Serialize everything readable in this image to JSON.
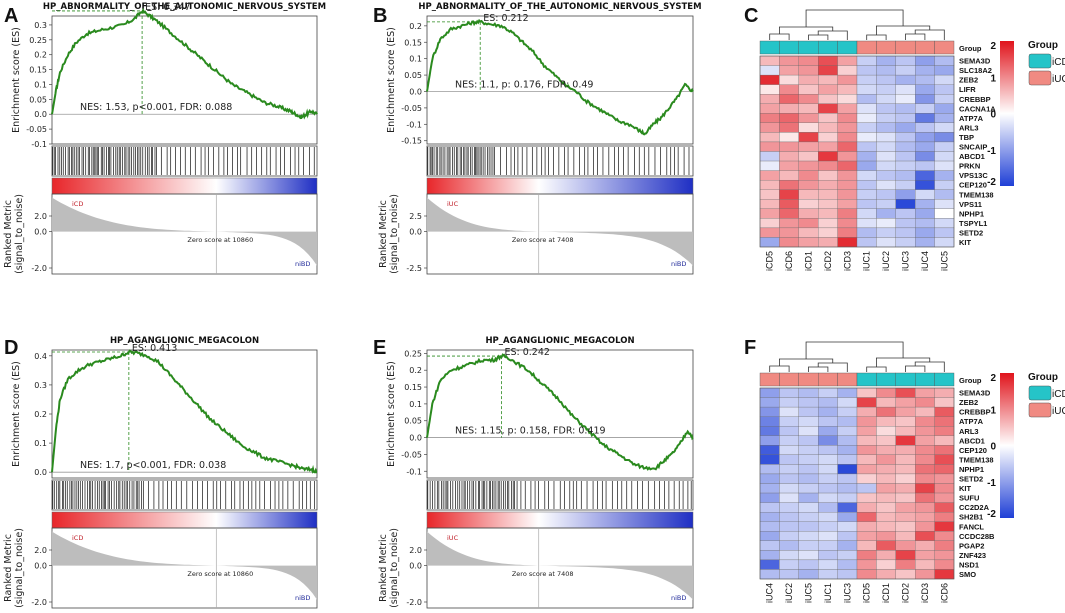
{
  "panel_labels": [
    "A",
    "B",
    "C",
    "D",
    "E",
    "F"
  ],
  "colors": {
    "curve": "#2a8a1e",
    "iCD": "#25c4c8",
    "iUC": "#f08a82",
    "heat_low": "#1f3fd6",
    "heat_mid": "#ffffff",
    "heat_high": "#e0141c",
    "ramp_red": "#e8262a",
    "ramp_blue": "#1f2fc4",
    "metric_fill": "#bdbdbd",
    "pos_label": "#c0202a",
    "neg_label": "#202a9a"
  },
  "gsea": [
    {
      "label": "A",
      "title": "HP_ABNORMALITY_OF_THE_AUTONOMIC_NERVOUS_SYSTEM",
      "es_text": "ES: 0.347",
      "stats_text": "NES: 1.53, p<0.001, FDR: 0.088",
      "y_label": "Enrichment score (ES)",
      "metric_label": "Ranked Metric\n(signal_to_noise)",
      "pos_group": "iCD",
      "neg_group": "niBD",
      "zero_text": "Zero score at 10860",
      "es_ticks": [
        "0.3",
        "0.25",
        "0.2",
        "0.15",
        "0.1",
        "0.05",
        "0.0",
        "-0.05",
        "-0.1"
      ],
      "metric_ticks": [
        "2.0",
        "0.0",
        "-2.0"
      ],
      "chart_data": {
        "type": "line",
        "title": "HP_ABNORMALITY_OF_THE_AUTONOMIC_NERVOUS_SYSTEM",
        "ylabel": "Enrichment score (ES)",
        "ylim": [
          -0.1,
          0.33
        ],
        "x": [
          0,
          0.015,
          0.03,
          0.06,
          0.09,
          0.13,
          0.17,
          0.22,
          0.27,
          0.31,
          0.34,
          0.37,
          0.4,
          0.44,
          0.48,
          0.52,
          0.56,
          0.6,
          0.64,
          0.68,
          0.72,
          0.76,
          0.8,
          0.84,
          0.87,
          0.9,
          0.92,
          0.94,
          0.96,
          0.98,
          1.0
        ],
        "y": [
          0,
          0.08,
          0.14,
          0.2,
          0.24,
          0.27,
          0.28,
          0.29,
          0.3,
          0.32,
          0.347,
          0.33,
          0.31,
          0.28,
          0.25,
          0.22,
          0.19,
          0.16,
          0.13,
          0.1,
          0.08,
          0.06,
          0.04,
          0.03,
          0.02,
          0.01,
          0.0,
          -0.01,
          0.0,
          0.01,
          0.0
        ],
        "peak_x": 0.34,
        "peak_es": 0.347,
        "zero_score_position": 0.62
      }
    },
    {
      "label": "B",
      "title": "HP_ABNORMALITY_OF_THE_AUTONOMIC_NERVOUS_SYSTEM",
      "es_text": "ES: 0.212",
      "stats_text": "NES: 1.1, p: 0.176, FDR: 0.49",
      "y_label": "Enrichment score (ES)",
      "metric_label": "Ranked Metric\n(signal_to_noise)",
      "pos_group": "iUC",
      "neg_group": "niBD",
      "zero_text": "Zero score at 7408",
      "es_ticks": [
        "0.2",
        "0.15",
        "0.1",
        "0.05",
        "0.0",
        "-0.05",
        "-0.1",
        "-0.15"
      ],
      "metric_ticks": [
        "2.5",
        "0.0",
        "-2.5"
      ],
      "chart_data": {
        "type": "line",
        "title": "HP_ABNORMALITY_OF_THE_AUTONOMIC_NERVOUS_SYSTEM",
        "ylabel": "Enrichment score (ES)",
        "ylim": [
          -0.16,
          0.23
        ],
        "x": [
          0,
          0.02,
          0.05,
          0.09,
          0.13,
          0.17,
          0.2,
          0.24,
          0.28,
          0.32,
          0.36,
          0.4,
          0.44,
          0.48,
          0.52,
          0.56,
          0.6,
          0.64,
          0.68,
          0.72,
          0.76,
          0.8,
          0.82,
          0.85,
          0.88,
          0.91,
          0.94,
          0.97,
          1.0
        ],
        "y": [
          0,
          0.1,
          0.16,
          0.19,
          0.2,
          0.21,
          0.212,
          0.205,
          0.2,
          0.18,
          0.15,
          0.12,
          0.08,
          0.05,
          0.02,
          0.0,
          -0.03,
          -0.05,
          -0.07,
          -0.09,
          -0.1,
          -0.12,
          -0.13,
          -0.1,
          -0.08,
          -0.05,
          -0.02,
          0.02,
          0.0
        ],
        "peak_x": 0.2,
        "peak_es": 0.212,
        "zero_score_position": 0.42
      }
    },
    {
      "label": "D",
      "title": "HP_AGANGLIONIC_MEGACOLON",
      "es_text": "ES: 0.413",
      "stats_text": "NES: 1.7, p<0.001, FDR: 0.038",
      "y_label": "Enrichment score (ES)",
      "metric_label": "Ranked Metric\n(signal_to_noise)",
      "pos_group": "iCD",
      "neg_group": "niBD",
      "zero_text": "Zero score at 10860",
      "es_ticks": [
        "0.4",
        "0.3",
        "0.2",
        "0.1",
        "0.0"
      ],
      "metric_ticks": [
        "2.0",
        "0.0",
        "-2.0"
      ],
      "chart_data": {
        "type": "line",
        "title": "HP_AGANGLIONIC_MEGACOLON",
        "ylabel": "Enrichment score (ES)",
        "ylim": [
          -0.02,
          0.42
        ],
        "x": [
          0,
          0.015,
          0.03,
          0.06,
          0.1,
          0.14,
          0.18,
          0.22,
          0.26,
          0.29,
          0.32,
          0.36,
          0.4,
          0.44,
          0.48,
          0.52,
          0.56,
          0.6,
          0.64,
          0.68,
          0.72,
          0.76,
          0.8,
          0.84,
          0.88,
          0.92,
          0.95,
          0.98,
          1.0
        ],
        "y": [
          0,
          0.15,
          0.25,
          0.32,
          0.35,
          0.37,
          0.38,
          0.39,
          0.4,
          0.413,
          0.41,
          0.4,
          0.38,
          0.34,
          0.3,
          0.26,
          0.22,
          0.18,
          0.15,
          0.12,
          0.09,
          0.07,
          0.05,
          0.04,
          0.03,
          0.02,
          0.01,
          0.01,
          0.0
        ],
        "peak_x": 0.29,
        "peak_es": 0.413,
        "zero_score_position": 0.62
      }
    },
    {
      "label": "E",
      "title": "HP_AGANGLIONIC_MEGACOLON",
      "es_text": "ES: 0.242",
      "stats_text": "NES: 1.15, p: 0.158, FDR: 0.419",
      "y_label": "Enrichment score (ES)",
      "metric_label": "Ranked Metric\n(signal_to_noise)",
      "pos_group": "iUC",
      "neg_group": "niBD",
      "zero_text": "Zero score at 7408",
      "es_ticks": [
        "0.25",
        "0.2",
        "0.15",
        "0.1",
        "0.05",
        "0.0",
        "-0.05",
        "-0.1"
      ],
      "metric_ticks": [
        "2.0",
        "0.0",
        "-2.0"
      ],
      "chart_data": {
        "type": "line",
        "title": "HP_AGANGLIONIC_MEGACOLON",
        "ylabel": "Enrichment score (ES)",
        "ylim": [
          -0.12,
          0.26
        ],
        "x": [
          0,
          0.02,
          0.05,
          0.09,
          0.13,
          0.17,
          0.21,
          0.25,
          0.28,
          0.3,
          0.34,
          0.38,
          0.42,
          0.46,
          0.5,
          0.54,
          0.58,
          0.62,
          0.66,
          0.7,
          0.74,
          0.78,
          0.82,
          0.86,
          0.89,
          0.92,
          0.95,
          0.98,
          1.0
        ],
        "y": [
          0,
          0.1,
          0.17,
          0.2,
          0.21,
          0.22,
          0.23,
          0.23,
          0.242,
          0.24,
          0.22,
          0.2,
          0.17,
          0.14,
          0.11,
          0.07,
          0.04,
          0.01,
          -0.02,
          -0.04,
          -0.06,
          -0.08,
          -0.09,
          -0.09,
          -0.07,
          -0.05,
          -0.02,
          0.02,
          0.0
        ],
        "peak_x": 0.28,
        "peak_es": 0.242,
        "zero_score_position": 0.42
      }
    }
  ],
  "heatmaps": [
    {
      "label": "C",
      "samples": [
        "iCD5",
        "iCD6",
        "iCD1",
        "iCD2",
        "iCD3",
        "iUC1",
        "iUC2",
        "iUC3",
        "iUC4",
        "iUC5"
      ],
      "sample_groups": [
        "iCD",
        "iCD",
        "iCD",
        "iCD",
        "iCD",
        "iUC",
        "iUC",
        "iUC",
        "iUC",
        "iUC"
      ],
      "genes": [
        "SEMA3D",
        "SLC18A2",
        "ZEB2",
        "LIFR",
        "CREBBP",
        "CACNA1A",
        "ATP7A",
        "ARL3",
        "TBP",
        "SNCAIP",
        "ABCD1",
        "PRKN",
        "VPS13C",
        "CEP120",
        "TMEM138",
        "VPS11",
        "NPHP1",
        "TSPYL1",
        "SETD2",
        "KIT"
      ],
      "group_label": "Group",
      "legend_title": "Group",
      "legend_items": [
        "iCD",
        "iUC"
      ],
      "colorbar_ticks": [
        "2",
        "1",
        "0",
        "-1",
        "-2"
      ],
      "chart_data": {
        "type": "heatmap",
        "zlim": [
          -2,
          2
        ],
        "values": [
          [
            0.6,
            0.9,
            1.0,
            1.5,
            0.8,
            -0.5,
            -0.8,
            -0.6,
            -1.0,
            -0.7
          ],
          [
            -0.3,
            0.8,
            0.9,
            1.6,
            0.4,
            -0.6,
            -0.7,
            -0.5,
            -0.8,
            -0.9
          ],
          [
            1.8,
            0.3,
            0.7,
            0.6,
            0.9,
            -0.5,
            -0.6,
            -0.8,
            -0.7,
            -0.4
          ],
          [
            0.2,
            1.0,
            0.5,
            0.8,
            0.6,
            -0.4,
            -0.5,
            -0.3,
            -0.9,
            -0.6
          ],
          [
            0.7,
            1.3,
            1.0,
            0.5,
            0.3,
            -0.7,
            -0.4,
            -0.2,
            -1.1,
            -0.5
          ],
          [
            0.8,
            0.7,
            0.6,
            1.6,
            0.8,
            -0.3,
            -0.6,
            -0.7,
            -0.5,
            -0.9
          ],
          [
            1.1,
            1.3,
            0.9,
            0.5,
            1.0,
            -0.2,
            -0.5,
            -0.6,
            -1.4,
            -0.8
          ],
          [
            0.9,
            1.2,
            0.3,
            0.6,
            0.9,
            -0.5,
            -0.7,
            -0.9,
            -0.6,
            -0.4
          ],
          [
            0.6,
            0.2,
            1.6,
            0.4,
            1.0,
            -0.2,
            -0.3,
            -0.6,
            -1.0,
            -1.2
          ],
          [
            0.9,
            0.9,
            0.8,
            0.8,
            1.3,
            -0.6,
            -0.4,
            -0.7,
            -0.9,
            -0.5
          ],
          [
            -0.5,
            0.7,
            0.5,
            1.7,
            0.9,
            -0.8,
            -0.3,
            -0.6,
            -1.2,
            -0.4
          ],
          [
            -0.2,
            0.8,
            0.9,
            1.0,
            1.3,
            -0.9,
            -0.4,
            -0.5,
            -0.6,
            -0.3
          ],
          [
            0.8,
            0.6,
            1.0,
            0.5,
            0.9,
            -0.4,
            -0.6,
            -0.7,
            -1.6,
            -0.8
          ],
          [
            0.6,
            1.2,
            0.9,
            0.7,
            0.9,
            -0.6,
            -0.3,
            -0.5,
            -1.8,
            -0.5
          ],
          [
            0.5,
            1.6,
            0.6,
            0.6,
            0.9,
            -0.5,
            -0.6,
            -1.0,
            -0.4,
            -0.7
          ],
          [
            0.6,
            1.4,
            0.4,
            0.5,
            0.8,
            -0.6,
            -0.5,
            -1.9,
            -0.8,
            -0.3
          ],
          [
            0.8,
            1.3,
            0.7,
            0.6,
            1.1,
            -0.4,
            -0.8,
            -0.6,
            -0.9,
            0.0
          ],
          [
            0.4,
            0.9,
            1.0,
            0.4,
            1.0,
            -0.3,
            -0.2,
            -0.6,
            -0.7,
            -0.4
          ],
          [
            0.9,
            0.9,
            0.6,
            0.4,
            1.1,
            -0.7,
            -0.5,
            -0.6,
            -0.9,
            -0.6
          ],
          [
            -0.9,
            1.0,
            0.8,
            0.7,
            1.8,
            -0.6,
            -0.3,
            -0.5,
            -0.8,
            -0.4
          ]
        ]
      }
    },
    {
      "label": "F",
      "samples": [
        "iUC4",
        "iUC2",
        "iUC5",
        "iUC1",
        "iUC3",
        "iCD5",
        "iCD1",
        "iCD2",
        "iCD3",
        "iCD6"
      ],
      "sample_groups": [
        "iUC",
        "iUC",
        "iUC",
        "iUC",
        "iUC",
        "iCD",
        "iCD",
        "iCD",
        "iCD",
        "iCD"
      ],
      "genes": [
        "SEMA3D",
        "ZEB2",
        "CREBBP",
        "ATP7A",
        "ARL3",
        "ABCD1",
        "CEP120",
        "TMEM138",
        "NPHP1",
        "SETD2",
        "KIT",
        "SUFU",
        "CC2D2A",
        "SH2B1",
        "FANCL",
        "CCDC28B",
        "PGAP2",
        "ZNF423",
        "NSD1",
        "SMO"
      ],
      "group_label": "Group",
      "legend_title": "Group",
      "legend_items": [
        "iCD",
        "iUC"
      ],
      "colorbar_ticks": [
        "2",
        "1",
        "0",
        "-1",
        "-2"
      ],
      "chart_data": {
        "type": "heatmap",
        "zlim": [
          -2,
          2
        ],
        "values": [
          [
            -1.0,
            -0.6,
            -0.7,
            -0.5,
            -0.8,
            0.5,
            1.0,
            1.5,
            0.8,
            0.7
          ],
          [
            -0.9,
            -0.5,
            -0.6,
            -0.7,
            -0.4,
            1.6,
            0.6,
            0.8,
            1.0,
            0.5
          ],
          [
            -1.1,
            -0.3,
            -0.6,
            -0.8,
            -0.5,
            0.7,
            1.2,
            0.8,
            0.6,
            1.4
          ],
          [
            -1.3,
            -0.5,
            -0.4,
            -0.6,
            -0.7,
            0.9,
            0.6,
            0.5,
            1.0,
            1.2
          ],
          [
            -1.4,
            -0.6,
            -0.3,
            -0.9,
            -0.5,
            0.8,
            0.3,
            0.6,
            0.9,
            1.1
          ],
          [
            -1.0,
            -0.5,
            -0.6,
            -1.2,
            -0.7,
            0.6,
            0.5,
            1.7,
            0.8,
            0.6
          ],
          [
            -1.7,
            -0.4,
            -0.5,
            -0.6,
            -0.8,
            0.9,
            0.7,
            0.7,
            1.0,
            1.2
          ],
          [
            -1.8,
            -0.6,
            -0.5,
            -0.4,
            -0.6,
            0.6,
            0.9,
            0.6,
            1.0,
            1.5
          ],
          [
            -0.7,
            -0.5,
            -0.6,
            -0.4,
            -1.9,
            0.8,
            0.7,
            0.6,
            1.2,
            1.3
          ],
          [
            -0.9,
            -0.6,
            -0.7,
            -0.5,
            -0.6,
            0.4,
            0.6,
            0.4,
            1.0,
            0.9
          ],
          [
            -0.8,
            -0.4,
            -0.5,
            -0.6,
            -0.7,
            -0.6,
            0.8,
            0.7,
            1.6,
            1.0
          ],
          [
            -1.0,
            -0.3,
            -0.8,
            -0.4,
            -0.5,
            0.5,
            0.6,
            0.5,
            1.2,
            0.9
          ],
          [
            -0.6,
            -0.5,
            -0.4,
            -0.7,
            -1.6,
            0.7,
            0.5,
            0.8,
            0.9,
            1.4
          ],
          [
            -0.8,
            -0.6,
            -0.5,
            -0.4,
            -0.9,
            1.3,
            0.6,
            0.7,
            0.8,
            1.1
          ],
          [
            -0.7,
            -0.6,
            -0.6,
            -0.5,
            -0.4,
            0.7,
            0.6,
            0.5,
            0.9,
            1.7
          ],
          [
            -0.9,
            -0.5,
            -0.4,
            -0.3,
            -0.6,
            0.8,
            0.9,
            0.6,
            1.5,
            1.0
          ],
          [
            -0.6,
            -0.7,
            -0.5,
            -0.5,
            -0.8,
            0.6,
            1.4,
            0.9,
            0.7,
            1.1
          ],
          [
            -0.8,
            -0.4,
            -0.3,
            -0.6,
            -0.5,
            1.1,
            0.7,
            1.6,
            0.8,
            0.9
          ],
          [
            -1.6,
            -0.5,
            -0.6,
            -0.4,
            -0.7,
            0.9,
            0.4,
            1.1,
            0.6,
            1.0
          ],
          [
            -0.7,
            -0.6,
            -0.8,
            -0.5,
            -0.6,
            1.0,
            0.7,
            0.5,
            0.9,
            1.7
          ]
        ]
      }
    }
  ]
}
